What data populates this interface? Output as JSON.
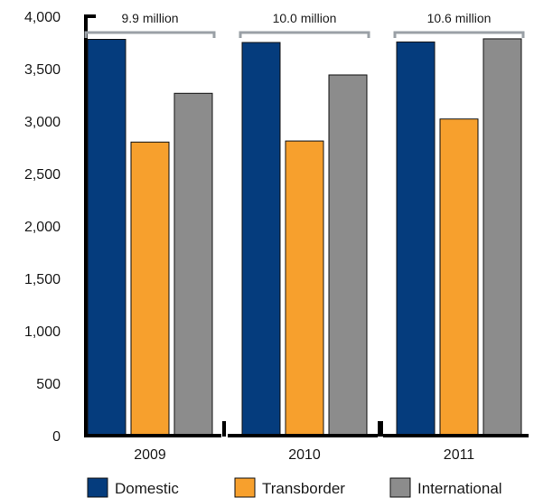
{
  "chart_data": {
    "type": "bar",
    "categories": [
      "2009",
      "2010",
      "2011"
    ],
    "series": [
      {
        "name": "Domestic",
        "values": [
          3780,
          3750,
          3755
        ],
        "color": "#053c7d"
      },
      {
        "name": "Transborder",
        "values": [
          2800,
          2810,
          3020
        ],
        "color": "#f7a02d"
      },
      {
        "name": "International",
        "values": [
          3265,
          3440,
          3785
        ],
        "color": "#8c8c8c"
      }
    ],
    "group_totals": [
      "9.9 million",
      "10.0 million",
      "10.6 million"
    ],
    "ylim": [
      0,
      4000
    ],
    "yticks": [
      0,
      500,
      1000,
      1500,
      2000,
      2500,
      3000,
      3500,
      4000
    ],
    "ytick_labels": [
      "0",
      "500",
      "1,000",
      "1,500",
      "2,000",
      "2,500",
      "3,000",
      "3,500",
      "4,000"
    ],
    "title": "",
    "xlabel": "",
    "ylabel": "",
    "grid": false,
    "legend_position": "bottom"
  }
}
